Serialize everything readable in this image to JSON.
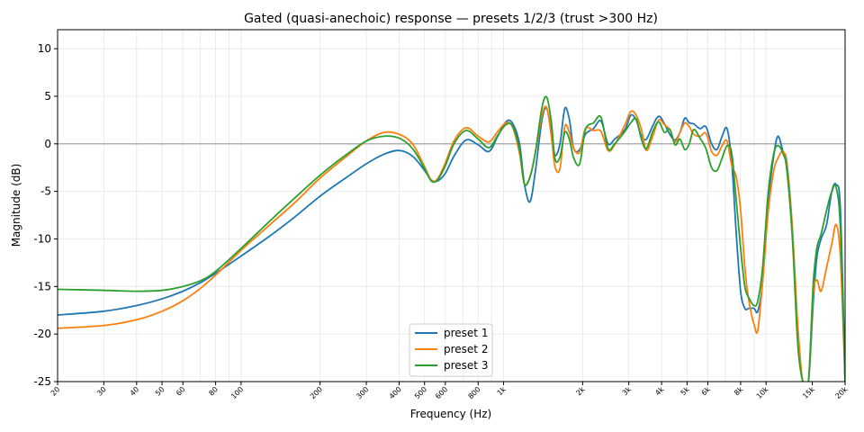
{
  "chart_data": {
    "type": "line",
    "title": "Gated (quasi-anechoic) response — presets 1/2/3  (trust >300 Hz)",
    "xlabel": "Frequency (Hz)",
    "ylabel": "Magnitude (dB)",
    "xscale": "log",
    "xlim": [
      20,
      20000
    ],
    "ylim": [
      -25,
      12
    ],
    "grid": true,
    "reference_line_y": 0,
    "legend_position": "lower-center",
    "x_ticks": [
      {
        "value": 20,
        "label": "20"
      },
      {
        "value": 30,
        "label": "30"
      },
      {
        "value": 40,
        "label": "40"
      },
      {
        "value": 50,
        "label": "50"
      },
      {
        "value": 60,
        "label": "60"
      },
      {
        "value": 80,
        "label": "80"
      },
      {
        "value": 100,
        "label": "100"
      },
      {
        "value": 200,
        "label": "200"
      },
      {
        "value": 300,
        "label": "300"
      },
      {
        "value": 400,
        "label": "400"
      },
      {
        "value": 500,
        "label": "500"
      },
      {
        "value": 600,
        "label": "600"
      },
      {
        "value": 800,
        "label": "800"
      },
      {
        "value": 1000,
        "label": "1k"
      },
      {
        "value": 2000,
        "label": "2k"
      },
      {
        "value": 3000,
        "label": "3k"
      },
      {
        "value": 4000,
        "label": "4k"
      },
      {
        "value": 5000,
        "label": "5k"
      },
      {
        "value": 6000,
        "label": "6k"
      },
      {
        "value": 8000,
        "label": "8k"
      },
      {
        "value": 10000,
        "label": "10k"
      },
      {
        "value": 15000,
        "label": "15k"
      },
      {
        "value": 20000,
        "label": "20k"
      }
    ],
    "y_ticks": [
      10,
      5,
      0,
      -5,
      -10,
      -15,
      -20,
      -25
    ],
    "series": [
      {
        "name": "preset 1",
        "color": "#1f77b4",
        "points": [
          [
            20,
            -18
          ],
          [
            30,
            -17.6
          ],
          [
            40,
            -17
          ],
          [
            50,
            -16.3
          ],
          [
            60,
            -15.5
          ],
          [
            70,
            -14.6
          ],
          [
            80,
            -13.6
          ],
          [
            100,
            -11.8
          ],
          [
            130,
            -9.6
          ],
          [
            160,
            -7.7
          ],
          [
            200,
            -5.5
          ],
          [
            250,
            -3.6
          ],
          [
            300,
            -2.1
          ],
          [
            350,
            -1.1
          ],
          [
            400,
            -0.7
          ],
          [
            450,
            -1.3
          ],
          [
            500,
            -2.8
          ],
          [
            530,
            -3.8
          ],
          [
            560,
            -3.9
          ],
          [
            600,
            -3.1
          ],
          [
            650,
            -1.2
          ],
          [
            720,
            0.4
          ],
          [
            800,
            -0.1
          ],
          [
            880,
            -0.8
          ],
          [
            950,
            0.8
          ],
          [
            1020,
            2.3
          ],
          [
            1080,
            2.2
          ],
          [
            1150,
            0
          ],
          [
            1200,
            -4.2
          ],
          [
            1260,
            -6.1
          ],
          [
            1320,
            -3
          ],
          [
            1400,
            2.5
          ],
          [
            1460,
            3.7
          ],
          [
            1520,
            1.2
          ],
          [
            1570,
            -1.2
          ],
          [
            1640,
            0
          ],
          [
            1710,
            3.7
          ],
          [
            1780,
            2.6
          ],
          [
            1850,
            -0.5
          ],
          [
            1950,
            -0.6
          ],
          [
            2050,
            1
          ],
          [
            2200,
            1.6
          ],
          [
            2350,
            2.4
          ],
          [
            2500,
            0
          ],
          [
            2650,
            0.5
          ],
          [
            2900,
            1.5
          ],
          [
            3050,
            3
          ],
          [
            3200,
            2.5
          ],
          [
            3350,
            0.8
          ],
          [
            3500,
            0.5
          ],
          [
            3700,
            1.9
          ],
          [
            3900,
            2.9
          ],
          [
            4100,
            2.1
          ],
          [
            4300,
            1
          ],
          [
            4500,
            0.4
          ],
          [
            4700,
            1.2
          ],
          [
            4900,
            2.7
          ],
          [
            5100,
            2.2
          ],
          [
            5300,
            2.1
          ],
          [
            5600,
            1.6
          ],
          [
            5900,
            1.8
          ],
          [
            6200,
            0
          ],
          [
            6500,
            -0.6
          ],
          [
            6800,
            0.8
          ],
          [
            7100,
            1.6
          ],
          [
            7400,
            -2
          ],
          [
            7700,
            -9.5
          ],
          [
            8000,
            -15.5
          ],
          [
            8300,
            -17.3
          ],
          [
            8600,
            -17.3
          ],
          [
            9000,
            -17.3
          ],
          [
            9300,
            -17.6
          ],
          [
            9700,
            -14.5
          ],
          [
            10200,
            -6
          ],
          [
            10700,
            -1.2
          ],
          [
            11100,
            0.8
          ],
          [
            11600,
            -0.8
          ],
          [
            12000,
            -2
          ],
          [
            12600,
            -9
          ],
          [
            13200,
            -20
          ],
          [
            13800,
            -25
          ],
          [
            14500,
            -25
          ],
          [
            15100,
            -17
          ],
          [
            15600,
            -12
          ],
          [
            16200,
            -10
          ],
          [
            17000,
            -8.5
          ],
          [
            17800,
            -5
          ],
          [
            18500,
            -4.3
          ],
          [
            19200,
            -7
          ],
          [
            20000,
            -25
          ]
        ]
      },
      {
        "name": "preset 2",
        "color": "#ff7f0e",
        "points": [
          [
            20,
            -19.4
          ],
          [
            30,
            -19.1
          ],
          [
            40,
            -18.5
          ],
          [
            50,
            -17.6
          ],
          [
            60,
            -16.5
          ],
          [
            70,
            -15.2
          ],
          [
            80,
            -13.8
          ],
          [
            100,
            -11.2
          ],
          [
            130,
            -8.4
          ],
          [
            160,
            -6.2
          ],
          [
            200,
            -3.6
          ],
          [
            250,
            -1.4
          ],
          [
            300,
            0.3
          ],
          [
            350,
            1.2
          ],
          [
            400,
            1
          ],
          [
            450,
            0
          ],
          [
            500,
            -2.4
          ],
          [
            530,
            -3.8
          ],
          [
            560,
            -3.7
          ],
          [
            600,
            -2
          ],
          [
            650,
            0.4
          ],
          [
            720,
            1.7
          ],
          [
            800,
            0.8
          ],
          [
            880,
            0.2
          ],
          [
            950,
            1.3
          ],
          [
            1020,
            2.2
          ],
          [
            1080,
            1.8
          ],
          [
            1150,
            -1
          ],
          [
            1200,
            -4.2
          ],
          [
            1260,
            -3.5
          ],
          [
            1320,
            -1
          ],
          [
            1400,
            3
          ],
          [
            1460,
            3.8
          ],
          [
            1520,
            0.8
          ],
          [
            1570,
            -2.4
          ],
          [
            1640,
            -2.6
          ],
          [
            1710,
            1.8
          ],
          [
            1780,
            1.2
          ],
          [
            1850,
            -0.5
          ],
          [
            1950,
            -0.9
          ],
          [
            2050,
            1.6
          ],
          [
            2200,
            1.4
          ],
          [
            2350,
            1.3
          ],
          [
            2500,
            -0.7
          ],
          [
            2650,
            -0.1
          ],
          [
            2900,
            2
          ],
          [
            3050,
            3.4
          ],
          [
            3200,
            3
          ],
          [
            3350,
            1.5
          ],
          [
            3500,
            -0.7
          ],
          [
            3700,
            0.8
          ],
          [
            3900,
            2.5
          ],
          [
            4100,
            2
          ],
          [
            4300,
            1.5
          ],
          [
            4500,
            0.2
          ],
          [
            4700,
            1.2
          ],
          [
            4900,
            2.2
          ],
          [
            5100,
            1.8
          ],
          [
            5300,
            1
          ],
          [
            5600,
            0.8
          ],
          [
            5900,
            1.1
          ],
          [
            6200,
            -0.8
          ],
          [
            6500,
            -1.2
          ],
          [
            6800,
            -0.2
          ],
          [
            7100,
            0.3
          ],
          [
            7400,
            -2.3
          ],
          [
            7700,
            -3.5
          ],
          [
            8000,
            -7
          ],
          [
            8300,
            -13
          ],
          [
            8600,
            -16.5
          ],
          [
            9000,
            -19
          ],
          [
            9300,
            -19.6
          ],
          [
            9700,
            -14.5
          ],
          [
            10200,
            -7
          ],
          [
            10700,
            -2.8
          ],
          [
            11100,
            -1.5
          ],
          [
            11600,
            -0.8
          ],
          [
            12000,
            -2.3
          ],
          [
            12600,
            -9
          ],
          [
            13200,
            -19
          ],
          [
            13800,
            -25
          ],
          [
            14500,
            -25
          ],
          [
            15100,
            -16
          ],
          [
            15600,
            -14.3
          ],
          [
            16200,
            -15.5
          ],
          [
            17000,
            -13
          ],
          [
            17800,
            -10.5
          ],
          [
            18500,
            -8.5
          ],
          [
            19200,
            -12
          ],
          [
            20000,
            -25
          ]
        ]
      },
      {
        "name": "preset 3",
        "color": "#2ca02c",
        "points": [
          [
            20,
            -15.3
          ],
          [
            30,
            -15.4
          ],
          [
            40,
            -15.5
          ],
          [
            50,
            -15.4
          ],
          [
            60,
            -15
          ],
          [
            70,
            -14.4
          ],
          [
            80,
            -13.4
          ],
          [
            100,
            -11
          ],
          [
            130,
            -8
          ],
          [
            160,
            -5.7
          ],
          [
            200,
            -3.3
          ],
          [
            250,
            -1.2
          ],
          [
            300,
            0.3
          ],
          [
            350,
            0.8
          ],
          [
            400,
            0.6
          ],
          [
            450,
            -0.5
          ],
          [
            500,
            -2.6
          ],
          [
            530,
            -3.9
          ],
          [
            560,
            -3.8
          ],
          [
            600,
            -2.3
          ],
          [
            650,
            0.1
          ],
          [
            720,
            1.4
          ],
          [
            800,
            0.5
          ],
          [
            880,
            -0.4
          ],
          [
            950,
            0.9
          ],
          [
            1020,
            2
          ],
          [
            1080,
            1.9
          ],
          [
            1150,
            -0.6
          ],
          [
            1200,
            -4.2
          ],
          [
            1260,
            -3.5
          ],
          [
            1320,
            -1
          ],
          [
            1400,
            3.8
          ],
          [
            1460,
            4.9
          ],
          [
            1520,
            2.3
          ],
          [
            1570,
            -1.6
          ],
          [
            1640,
            -1.4
          ],
          [
            1710,
            1.2
          ],
          [
            1780,
            0.5
          ],
          [
            1850,
            -1.5
          ],
          [
            1950,
            -2.1
          ],
          [
            2050,
            1.5
          ],
          [
            2200,
            2.2
          ],
          [
            2350,
            2.8
          ],
          [
            2500,
            -0.5
          ],
          [
            2650,
            0
          ],
          [
            2900,
            1.3
          ],
          [
            3050,
            2.2
          ],
          [
            3200,
            2.6
          ],
          [
            3350,
            0.5
          ],
          [
            3500,
            -0.5
          ],
          [
            3700,
            1.3
          ],
          [
            3900,
            2.3
          ],
          [
            4100,
            1.2
          ],
          [
            4300,
            1.5
          ],
          [
            4500,
            -0.1
          ],
          [
            4700,
            0.5
          ],
          [
            4900,
            -0.6
          ],
          [
            5100,
            0
          ],
          [
            5300,
            1.5
          ],
          [
            5600,
            0.6
          ],
          [
            5900,
            -0.5
          ],
          [
            6200,
            -2.5
          ],
          [
            6500,
            -2.8
          ],
          [
            6800,
            -1.5
          ],
          [
            7100,
            -0.2
          ],
          [
            7400,
            -1
          ],
          [
            7700,
            -6
          ],
          [
            8000,
            -11
          ],
          [
            8300,
            -15
          ],
          [
            8600,
            -16.2
          ],
          [
            9000,
            -17
          ],
          [
            9300,
            -16.5
          ],
          [
            9700,
            -13
          ],
          [
            10200,
            -5
          ],
          [
            10700,
            -1
          ],
          [
            11100,
            -0.2
          ],
          [
            11600,
            -1
          ],
          [
            12000,
            -2.8
          ],
          [
            12600,
            -10
          ],
          [
            13200,
            -21
          ],
          [
            13800,
            -25
          ],
          [
            14500,
            -25
          ],
          [
            15100,
            -15
          ],
          [
            15600,
            -11
          ],
          [
            16200,
            -9.5
          ],
          [
            17000,
            -7
          ],
          [
            17800,
            -5
          ],
          [
            18500,
            -4.6
          ],
          [
            19200,
            -9
          ],
          [
            20000,
            -25
          ]
        ]
      }
    ]
  }
}
